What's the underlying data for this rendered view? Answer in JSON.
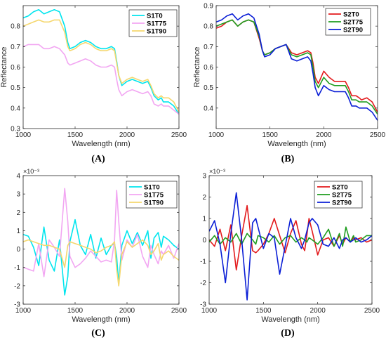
{
  "chart_data": [
    {
      "type": "line",
      "panel_label": "(A)",
      "xlabel": "Wavelength (nm)",
      "ylabel": "Reflectance",
      "xlim": [
        1000,
        2500
      ],
      "ylim": [
        0.3,
        0.9
      ],
      "xticks": [
        1000,
        1500,
        2000,
        2500
      ],
      "yticks": [
        0.3,
        0.4,
        0.5,
        0.6,
        0.7,
        0.8
      ],
      "ytick_labels": [
        "0.3",
        "0.4",
        "0.5",
        "0.6",
        "0.7",
        "0.8"
      ],
      "y_multiplier": "",
      "legend_position": "top-right",
      "x": [
        1000,
        1050,
        1100,
        1150,
        1200,
        1250,
        1300,
        1350,
        1400,
        1430,
        1450,
        1500,
        1550,
        1600,
        1650,
        1700,
        1750,
        1800,
        1850,
        1880,
        1900,
        1920,
        1950,
        2000,
        2050,
        2100,
        2150,
        2200,
        2230,
        2260,
        2300,
        2330,
        2350,
        2400,
        2450,
        2500
      ],
      "series": [
        {
          "name": "S1T0",
          "color": "#00e5ee",
          "values": [
            0.84,
            0.85,
            0.87,
            0.88,
            0.86,
            0.87,
            0.88,
            0.87,
            0.8,
            0.72,
            0.69,
            0.7,
            0.72,
            0.73,
            0.72,
            0.7,
            0.69,
            0.69,
            0.7,
            0.69,
            0.63,
            0.56,
            0.51,
            0.53,
            0.54,
            0.53,
            0.52,
            0.53,
            0.5,
            0.46,
            0.44,
            0.45,
            0.43,
            0.43,
            0.41,
            0.37
          ]
        },
        {
          "name": "S1T75",
          "color": "#f2a6f2",
          "values": [
            0.7,
            0.71,
            0.71,
            0.71,
            0.69,
            0.69,
            0.7,
            0.69,
            0.66,
            0.62,
            0.61,
            0.62,
            0.63,
            0.64,
            0.63,
            0.61,
            0.6,
            0.6,
            0.61,
            0.6,
            0.54,
            0.49,
            0.46,
            0.48,
            0.49,
            0.48,
            0.47,
            0.48,
            0.46,
            0.42,
            0.41,
            0.42,
            0.41,
            0.41,
            0.39,
            0.37
          ]
        },
        {
          "name": "S1T90",
          "color": "#f5d76e",
          "values": [
            0.8,
            0.81,
            0.82,
            0.83,
            0.82,
            0.82,
            0.83,
            0.83,
            0.77,
            0.7,
            0.68,
            0.69,
            0.71,
            0.72,
            0.71,
            0.69,
            0.68,
            0.68,
            0.69,
            0.68,
            0.62,
            0.56,
            0.52,
            0.54,
            0.55,
            0.54,
            0.53,
            0.54,
            0.51,
            0.47,
            0.45,
            0.46,
            0.45,
            0.45,
            0.43,
            0.38
          ]
        }
      ]
    },
    {
      "type": "line",
      "panel_label": "(B)",
      "xlabel": "Wavelength (nm)",
      "ylabel": "Reflectance",
      "xlim": [
        1000,
        2500
      ],
      "ylim": [
        0.3,
        0.9
      ],
      "xticks": [
        1000,
        1500,
        2000,
        2500
      ],
      "yticks": [
        0.4,
        0.5,
        0.6,
        0.7,
        0.8,
        0.9
      ],
      "ytick_labels": [
        "0.4",
        "0.5",
        "0.6",
        "0.7",
        "0.8",
        "0.9"
      ],
      "y_multiplier": "",
      "legend_position": "top-right",
      "x": [
        1000,
        1050,
        1100,
        1150,
        1200,
        1250,
        1300,
        1350,
        1400,
        1430,
        1450,
        1500,
        1550,
        1600,
        1650,
        1700,
        1750,
        1800,
        1850,
        1880,
        1900,
        1920,
        1950,
        2000,
        2050,
        2100,
        2150,
        2200,
        2230,
        2260,
        2300,
        2330,
        2350,
        2400,
        2450,
        2500
      ],
      "series": [
        {
          "name": "S2T0",
          "color": "#e31a1c",
          "values": [
            0.79,
            0.8,
            0.82,
            0.83,
            0.8,
            0.82,
            0.83,
            0.82,
            0.74,
            0.68,
            0.66,
            0.67,
            0.69,
            0.7,
            0.71,
            0.67,
            0.66,
            0.67,
            0.68,
            0.67,
            0.62,
            0.55,
            0.52,
            0.58,
            0.55,
            0.53,
            0.53,
            0.53,
            0.5,
            0.46,
            0.46,
            0.45,
            0.44,
            0.45,
            0.43,
            0.38
          ]
        },
        {
          "name": "S2T75",
          "color": "#1f9d1f",
          "values": [
            0.8,
            0.81,
            0.82,
            0.83,
            0.8,
            0.82,
            0.83,
            0.82,
            0.75,
            0.68,
            0.66,
            0.67,
            0.69,
            0.7,
            0.71,
            0.66,
            0.65,
            0.66,
            0.67,
            0.66,
            0.6,
            0.53,
            0.5,
            0.55,
            0.52,
            0.51,
            0.51,
            0.51,
            0.48,
            0.44,
            0.44,
            0.43,
            0.43,
            0.43,
            0.41,
            0.37
          ]
        },
        {
          "name": "S2T90",
          "color": "#0b1fd6",
          "values": [
            0.82,
            0.83,
            0.85,
            0.86,
            0.83,
            0.85,
            0.86,
            0.84,
            0.76,
            0.68,
            0.65,
            0.66,
            0.69,
            0.7,
            0.71,
            0.64,
            0.63,
            0.64,
            0.65,
            0.63,
            0.57,
            0.5,
            0.46,
            0.51,
            0.49,
            0.48,
            0.48,
            0.48,
            0.45,
            0.41,
            0.41,
            0.4,
            0.4,
            0.4,
            0.38,
            0.34
          ]
        }
      ]
    },
    {
      "type": "line",
      "panel_label": "(C)",
      "xlabel": "Wavelength (nm)",
      "ylabel": "",
      "xlim": [
        1000,
        2500
      ],
      "ylim": [
        -3,
        4
      ],
      "xticks": [
        1000,
        1500,
        2000,
        2500
      ],
      "yticks": [
        -3,
        -2,
        -1,
        0,
        1,
        2,
        3,
        4
      ],
      "ytick_labels": [
        "-3",
        "-2",
        "-1",
        "0",
        "1",
        "2",
        "3",
        "4"
      ],
      "y_multiplier": "×10⁻³",
      "legend_position": "top-right",
      "x": [
        1000,
        1050,
        1100,
        1150,
        1200,
        1250,
        1300,
        1350,
        1400,
        1430,
        1450,
        1500,
        1550,
        1600,
        1650,
        1700,
        1750,
        1800,
        1850,
        1880,
        1900,
        1920,
        1950,
        2000,
        2050,
        2100,
        2150,
        2200,
        2230,
        2260,
        2300,
        2330,
        2350,
        2400,
        2450,
        2500
      ],
      "series": [
        {
          "name": "S1T0",
          "color": "#00e5ee",
          "values": [
            0.8,
            0.7,
            0.1,
            -0.9,
            1.2,
            -0.6,
            -1.2,
            0.5,
            -2.5,
            -1.5,
            0.4,
            1.6,
            0.2,
            -0.3,
            0.8,
            -0.5,
            0.6,
            -0.3,
            0.2,
            0.3,
            -0.4,
            -1.9,
            0.2,
            1.0,
            0.3,
            0.9,
            0.2,
            1.0,
            -0.5,
            0.6,
            0.9,
            0.1,
            0.7,
            0.5,
            0.2,
            0.0
          ]
        },
        {
          "name": "S1T75",
          "color": "#f2a6f2",
          "values": [
            -1.0,
            -1.1,
            -1.2,
            0.3,
            -1.5,
            0.5,
            0.1,
            -0.4,
            3.3,
            1.5,
            -0.4,
            -1.0,
            -0.8,
            -0.5,
            -0.1,
            -0.4,
            -0.7,
            -0.6,
            -0.7,
            0.5,
            3.2,
            1.5,
            -0.6,
            0.5,
            0.1,
            0.8,
            -0.4,
            -1.0,
            0.2,
            -0.3,
            -0.8,
            -0.1,
            -0.3,
            0.2,
            -0.5,
            0.3
          ]
        },
        {
          "name": "S1T90",
          "color": "#f5d76e",
          "values": [
            0.4,
            0.5,
            0.4,
            0.3,
            0.2,
            0.2,
            0.1,
            0.0,
            -1.0,
            0.2,
            0.4,
            0.3,
            0.2,
            0.1,
            0.0,
            -0.2,
            -0.1,
            0.1,
            0.2,
            0.4,
            -1.1,
            -2.0,
            -0.3,
            0.4,
            0.1,
            0.3,
            0.5,
            0.2,
            -0.3,
            -0.1,
            0.3,
            -0.6,
            -0.3,
            -0.1,
            -0.4,
            -0.6
          ]
        }
      ]
    },
    {
      "type": "line",
      "panel_label": "(D)",
      "xlabel": "Wavelength (nm)",
      "ylabel": "",
      "xlim": [
        1000,
        2500
      ],
      "ylim": [
        -3,
        3
      ],
      "xticks": [
        1000,
        1500,
        2000,
        2500
      ],
      "yticks": [
        -3,
        -2,
        -1,
        0,
        1,
        2,
        3
      ],
      "ytick_labels": [
        "-3",
        "-2",
        "-1",
        "0",
        "1",
        "2",
        "3"
      ],
      "y_multiplier": "×10⁻³",
      "legend_position": "top-right",
      "x": [
        1000,
        1050,
        1100,
        1150,
        1200,
        1250,
        1300,
        1350,
        1400,
        1430,
        1450,
        1500,
        1550,
        1600,
        1650,
        1700,
        1750,
        1800,
        1850,
        1880,
        1900,
        1920,
        1950,
        2000,
        2050,
        2100,
        2150,
        2200,
        2230,
        2260,
        2300,
        2330,
        2350,
        2400,
        2450,
        2500
      ],
      "series": [
        {
          "name": "S2T0",
          "color": "#e31a1c",
          "values": [
            0.0,
            -0.3,
            0.5,
            -0.5,
            0.7,
            -1.4,
            0.2,
            1.6,
            -0.5,
            -0.6,
            -0.5,
            -0.2,
            0.3,
            1.0,
            0.2,
            -0.6,
            0.3,
            0.9,
            -0.2,
            -0.5,
            0.2,
            1.0,
            0.4,
            -0.7,
            0.0,
            0.1,
            -0.3,
            0.2,
            -0.2,
            0.1,
            -0.1,
            0.1,
            0.0,
            0.1,
            -0.1,
            0.0
          ]
        },
        {
          "name": "S2T75",
          "color": "#1f9d1f",
          "values": [
            -0.1,
            0.2,
            -0.2,
            0.1,
            -0.1,
            0.3,
            -0.2,
            0.3,
            0.0,
            -0.2,
            0.2,
            0.1,
            -0.1,
            0.2,
            -0.2,
            0.1,
            0.2,
            -0.1,
            0.1,
            0.0,
            -0.1,
            0.1,
            0.0,
            -0.2,
            0.1,
            0.5,
            -0.3,
            0.3,
            -0.3,
            0.6,
            -0.1,
            0.2,
            -0.1,
            0.0,
            0.2,
            0.2
          ]
        },
        {
          "name": "S2T90",
          "color": "#0b1fd6",
          "values": [
            0.4,
            0.9,
            -0.2,
            -2.0,
            0.3,
            2.2,
            0.0,
            -2.8,
            0.8,
            1.0,
            0.6,
            -0.4,
            0.3,
            0.1,
            -1.6,
            -0.3,
            1.0,
            0.1,
            -0.4,
            0.0,
            0.4,
            0.8,
            1.0,
            0.7,
            -0.2,
            -0.3,
            0.1,
            -0.4,
            0.0,
            0.1,
            -0.1,
            0.0,
            0.1,
            -0.1,
            0.0,
            0.2
          ]
        }
      ]
    }
  ]
}
